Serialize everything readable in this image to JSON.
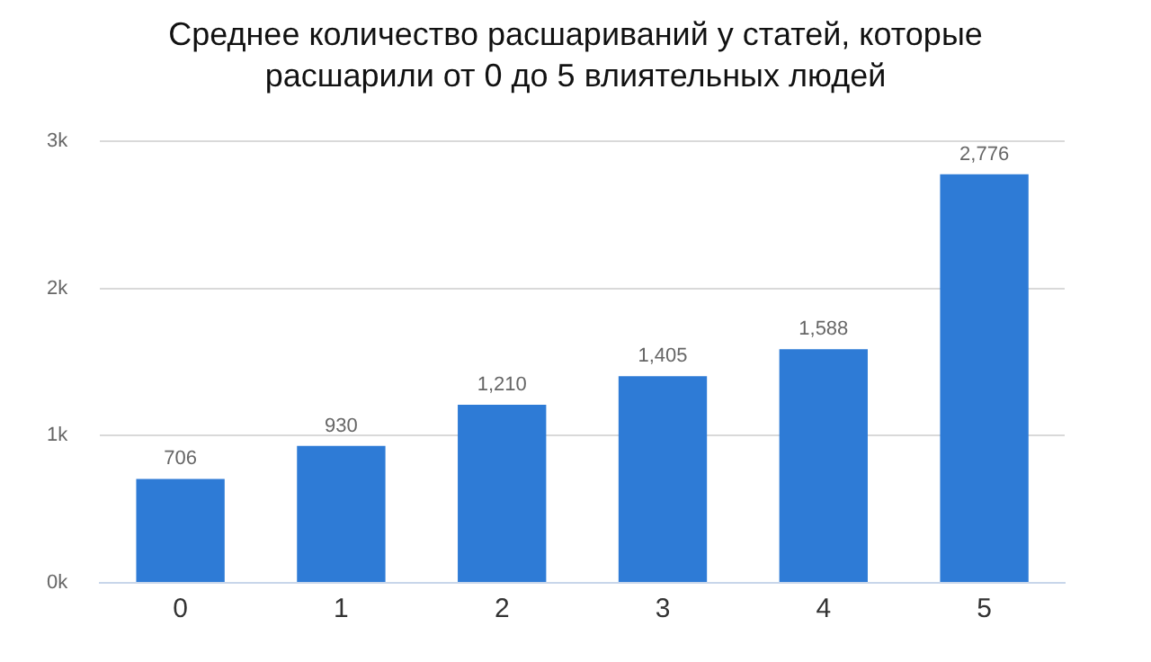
{
  "chart_data": {
    "type": "bar",
    "title": "Среднее количество расшариваний у статей, которые расшарили от 0 до 5 влиятельных людей",
    "categories": [
      "0",
      "1",
      "2",
      "3",
      "4",
      "5"
    ],
    "values": [
      706,
      930,
      1210,
      1405,
      1588,
      2776
    ],
    "value_labels": [
      "706",
      "930",
      "1,210",
      "1,405",
      "1,588",
      "2,776"
    ],
    "color": "#2e7bd6",
    "ylim": [
      0,
      3000
    ],
    "yticks": [
      {
        "value": 0,
        "label": "0k"
      },
      {
        "value": 1000,
        "label": "1k"
      },
      {
        "value": 2000,
        "label": "2k"
      },
      {
        "value": 3000,
        "label": "3k"
      }
    ],
    "grid": "y",
    "legend": false
  }
}
